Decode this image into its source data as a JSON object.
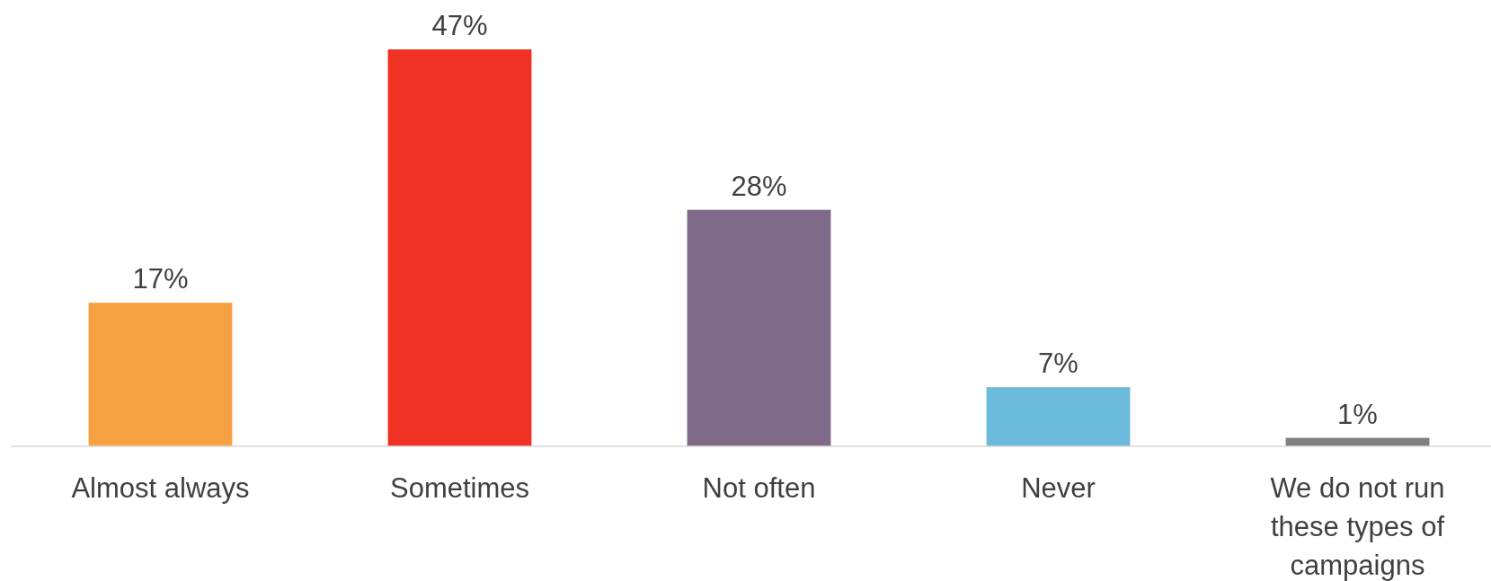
{
  "chart_data": {
    "type": "bar",
    "categories": [
      "Almost always",
      "Sometimes",
      "Not often",
      "Never",
      "We do not run these types of campaigns"
    ],
    "values": [
      17,
      47,
      28,
      7,
      1
    ],
    "colors": [
      "#f5a142",
      "#f03224",
      "#7f6a8a",
      "#6cbbdd",
      "#7f7f7f"
    ],
    "data_labels": true,
    "value_labels": [
      "17%",
      "47%",
      "28%",
      "7%",
      "1%"
    ]
  }
}
